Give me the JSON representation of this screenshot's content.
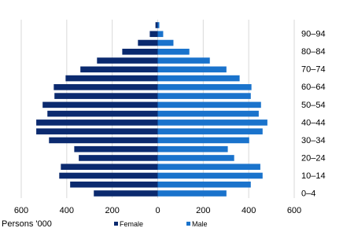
{
  "chart_data": {
    "type": "pyramid",
    "x_label": "Persons '000",
    "categories": [
      "0–4",
      null,
      "10–14",
      null,
      "20–24",
      null,
      "30–34",
      null,
      "40–44",
      null,
      "50–54",
      null,
      "60–64",
      null,
      "70–74",
      null,
      "80–84",
      null,
      "90–94",
      null
    ],
    "series": [
      {
        "name": "Female",
        "color": "#0b2a6f",
        "side": "left",
        "values": [
          281,
          385,
          433,
          426,
          347,
          367,
          478,
          534,
          534,
          485,
          506,
          454,
          457,
          405,
          340,
          267,
          156,
          87,
          35,
          10
        ]
      },
      {
        "name": "Male",
        "color": "#1a73cc",
        "side": "right",
        "values": [
          302,
          409,
          461,
          451,
          336,
          308,
          402,
          461,
          482,
          444,
          454,
          409,
          412,
          360,
          302,
          229,
          139,
          69,
          24,
          7
        ]
      }
    ],
    "xlim": [
      -600,
      600
    ],
    "xticks": [
      {
        "value": -600,
        "label": "600"
      },
      {
        "value": -400,
        "label": "400"
      },
      {
        "value": -200,
        "label": "200"
      },
      0,
      200,
      400,
      600
    ],
    "grid": true
  }
}
